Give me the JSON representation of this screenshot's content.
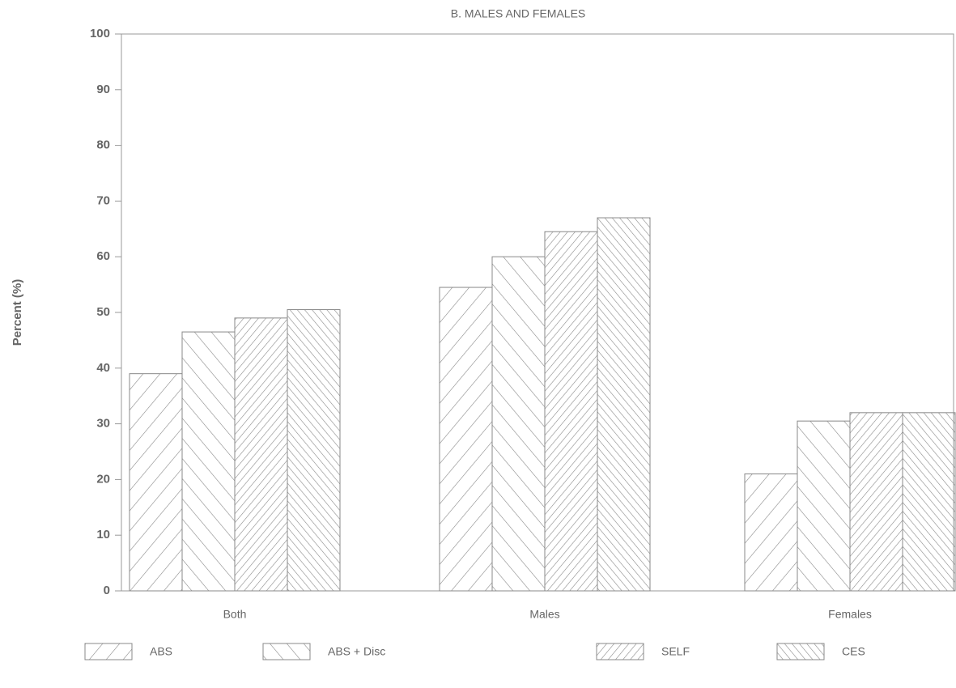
{
  "chart_data": {
    "type": "bar",
    "title": "B. MALES AND FEMALES",
    "ylabel": "Percent (%)",
    "categories": [
      "Both",
      "Males",
      "Females"
    ],
    "series": [
      {
        "name": "ABS",
        "color": "#888888",
        "hatch": "forward-sparse",
        "values": [
          39,
          54.5,
          21
        ]
      },
      {
        "name": "ABS + Disc",
        "color": "#888888",
        "hatch": "back-sparse",
        "values": [
          46.5,
          60,
          30.5
        ]
      },
      {
        "name": "SELF",
        "color": "#888888",
        "hatch": "forward-dense",
        "values": [
          49,
          64.5,
          32
        ]
      },
      {
        "name": "CES",
        "color": "#888888",
        "hatch": "back-dense",
        "values": [
          50.5,
          67,
          32
        ]
      }
    ],
    "ylim": [
      0,
      100
    ],
    "yticks": [
      0,
      10,
      20,
      30,
      40,
      50,
      60,
      70,
      80,
      90,
      100
    ],
    "legend": "bottom",
    "grid": false
  }
}
